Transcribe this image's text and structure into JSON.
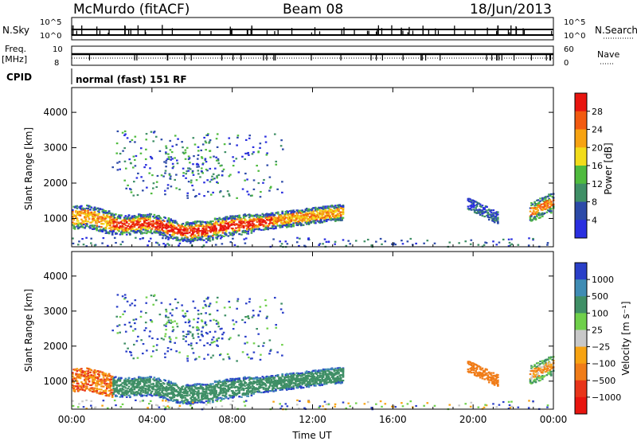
{
  "header": {
    "station": "McMurdo (fitACF)",
    "beam": "Beam 08",
    "date": "18/Jun/2013"
  },
  "top_panels": {
    "nsky_label": "N.Sky",
    "nsky_ticks": [
      "10^5",
      "10^0"
    ],
    "nsearch_label": "N.Search",
    "nsearch_ticks": [
      "10^5",
      "10^0"
    ],
    "freq_label": "Freq.",
    "freq_unit": "[MHz]",
    "freq_ticks": [
      "10",
      "8"
    ],
    "nave_label": "Nave",
    "nave_ticks": [
      "60",
      "0"
    ],
    "cpid_label": "CPID",
    "cpid_text": "normal (fast) 151 RF"
  },
  "chart_data": [
    {
      "type": "heatmap",
      "name": "power-panel",
      "ylabel": "Slant Range [km]",
      "yticks": [
        "4000",
        "3000",
        "2000",
        "1000"
      ],
      "xticks": [
        "00:00",
        "04:00",
        "08:00",
        "12:00",
        "16:00",
        "20:00",
        "00:00"
      ],
      "ylim": [
        200,
        4700
      ],
      "xlim": [
        0,
        24
      ],
      "colorbar": {
        "label": "Power [dB]",
        "ticks": [
          "28",
          "24",
          "20",
          "16",
          "12",
          "8",
          "4"
        ],
        "colors": [
          "#e8150f",
          "#f25a10",
          "#f7a312",
          "#f2dc1a",
          "#4fbb3e",
          "#3f8f66",
          "#2c4aa8",
          "#2a2fe0"
        ]
      }
    },
    {
      "type": "heatmap",
      "name": "velocity-panel",
      "ylabel": "Slant Range [km]",
      "yticks": [
        "4000",
        "3000",
        "2000",
        "1000"
      ],
      "xticks": [
        "00:00",
        "04:00",
        "08:00",
        "12:00",
        "16:00",
        "20:00",
        "00:00"
      ],
      "xlabel": "Time UT",
      "ylim": [
        200,
        4700
      ],
      "xlim": [
        0,
        24
      ],
      "colorbar": {
        "label": "Velocity [m s⁻¹]",
        "ticks": [
          "1000",
          "500",
          "100",
          "25",
          "−25",
          "−100",
          "−500",
          "−1000"
        ],
        "colors": [
          "#2a3fc8",
          "#3f8cb4",
          "#3f8f66",
          "#6fd04a",
          "#c8c8c8",
          "#f7a312",
          "#f07c18",
          "#e8351a",
          "#e8150f"
        ]
      }
    }
  ]
}
